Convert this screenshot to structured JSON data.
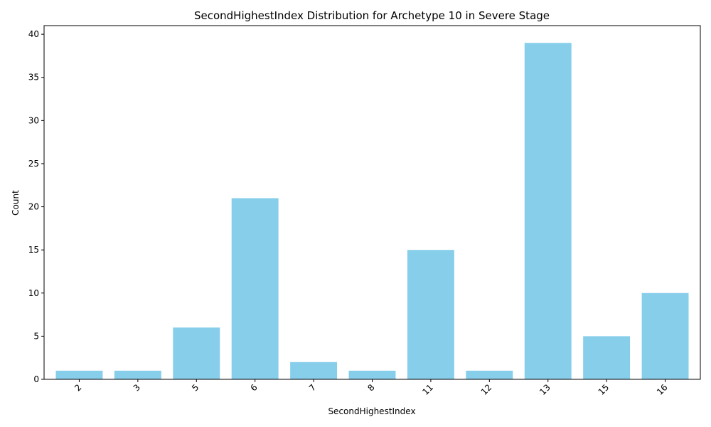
{
  "chart_data": {
    "type": "bar",
    "title": "SecondHighestIndex Distribution for Archetype 10 in Severe Stage",
    "xlabel": "SecondHighestIndex",
    "ylabel": "Count",
    "categories": [
      "2",
      "3",
      "5",
      "6",
      "7",
      "8",
      "11",
      "12",
      "13",
      "15",
      "16"
    ],
    "values": [
      1,
      1,
      6,
      21,
      2,
      1,
      15,
      1,
      39,
      5,
      10
    ],
    "ylim": [
      0,
      41
    ],
    "yticks": [
      0,
      5,
      10,
      15,
      20,
      25,
      30,
      35,
      40
    ],
    "bar_color": "#87ceeb",
    "grid": false,
    "x_tick_rotation_deg": 45
  }
}
